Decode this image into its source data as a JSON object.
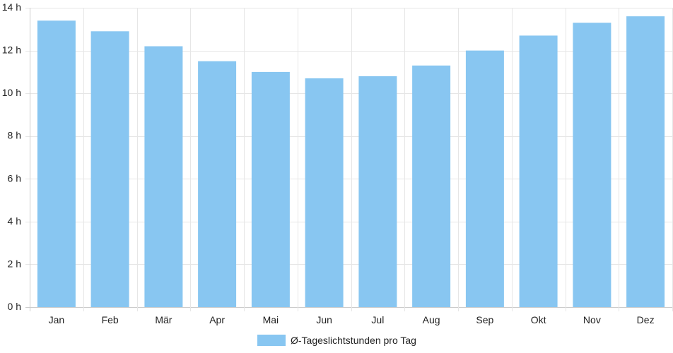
{
  "chart_data": {
    "type": "bar",
    "categories": [
      "Jan",
      "Feb",
      "Mär",
      "Apr",
      "Mai",
      "Jun",
      "Jul",
      "Aug",
      "Sep",
      "Okt",
      "Nov",
      "Dez"
    ],
    "series": [
      {
        "name": "Ø-Tageslichtstunden pro Tag",
        "values": [
          13.4,
          12.9,
          12.2,
          11.5,
          11.0,
          10.7,
          10.8,
          11.3,
          12.0,
          12.7,
          13.3,
          13.6
        ]
      }
    ],
    "ylim": [
      0,
      14
    ],
    "yticks": [
      0,
      2,
      4,
      6,
      8,
      10,
      12,
      14
    ],
    "ytick_unit": " h",
    "grid": true,
    "legend_position": "bottom",
    "colors": {
      "bar": "#88c6f1",
      "grid": "#e6e6e6",
      "axis": "#cccccc",
      "text": "#222222"
    }
  }
}
